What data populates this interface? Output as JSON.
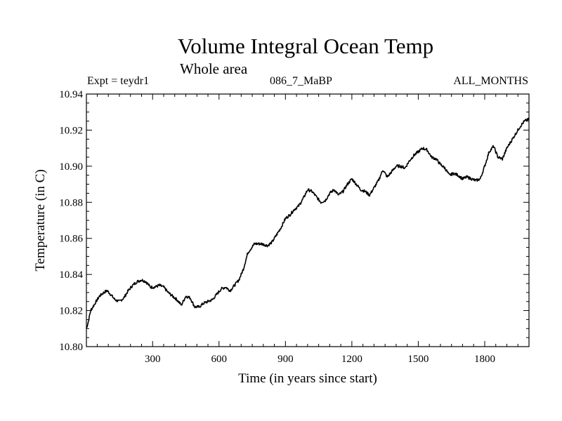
{
  "header": {
    "title": "Volume Integral Ocean Temp",
    "subtitle": "Whole area",
    "expt_label": "Expt = teydr1",
    "run_label": "086_7_MaBP",
    "months_label": "ALL_MONTHS"
  },
  "chart_data": {
    "type": "line",
    "title": "Volume Integral Ocean Temp",
    "subtitle": "Whole area",
    "xlabel": "Time (in years since start)",
    "ylabel": "Temperature (in C)",
    "xlim": [
      1,
      2000
    ],
    "ylim": [
      10.8,
      10.94
    ],
    "xticks": [
      300,
      600,
      900,
      1200,
      1500,
      1800
    ],
    "yticks": [
      "10.80",
      "10.82",
      "10.84",
      "10.86",
      "10.88",
      "10.90",
      "10.92",
      "10.94"
    ],
    "grid": false,
    "line_color": "#000000",
    "series": [
      {
        "x": [
          1,
          10,
          20,
          40,
          60,
          80,
          95,
          110,
          130,
          150,
          170,
          190,
          210,
          230,
          250,
          270,
          290,
          310,
          330,
          350,
          370,
          390,
          410,
          430,
          450,
          470,
          490,
          510,
          530,
          550,
          570,
          590,
          610,
          630,
          650,
          670,
          690,
          710,
          730,
          760,
          790,
          820,
          840,
          860,
          880,
          900,
          920,
          940,
          960,
          980,
          1000,
          1020,
          1040,
          1060,
          1080,
          1100,
          1120,
          1140,
          1160,
          1180,
          1200,
          1220,
          1240,
          1260,
          1280,
          1300,
          1320,
          1340,
          1360,
          1380,
          1400,
          1420,
          1440,
          1460,
          1480,
          1500,
          1520,
          1540,
          1560,
          1580,
          1600,
          1620,
          1640,
          1660,
          1680,
          1700,
          1720,
          1740,
          1760,
          1780,
          1800,
          1820,
          1840,
          1860,
          1880,
          1900,
          1920,
          1940,
          1960,
          1980,
          2000
        ],
        "values": [
          10.81,
          10.814,
          10.82,
          10.824,
          10.828,
          10.83,
          10.831,
          10.829,
          10.826,
          10.825,
          10.827,
          10.831,
          10.834,
          10.836,
          10.837,
          10.836,
          10.833,
          10.833,
          10.834,
          10.833,
          10.83,
          10.828,
          10.826,
          10.823,
          10.828,
          10.827,
          10.822,
          10.822,
          10.824,
          10.825,
          10.826,
          10.829,
          10.832,
          10.833,
          10.831,
          10.834,
          10.837,
          10.843,
          10.852,
          10.857,
          10.857,
          10.856,
          10.858,
          10.862,
          10.866,
          10.871,
          10.873,
          10.876,
          10.878,
          10.882,
          10.887,
          10.886,
          10.883,
          10.88,
          10.881,
          10.885,
          10.887,
          10.884,
          10.886,
          10.89,
          10.893,
          10.89,
          10.887,
          10.886,
          10.884,
          10.888,
          10.892,
          10.898,
          10.894,
          10.897,
          10.9,
          10.9,
          10.899,
          10.903,
          10.906,
          10.908,
          10.91,
          10.909,
          10.905,
          10.904,
          10.901,
          10.899,
          10.895,
          10.896,
          10.895,
          10.893,
          10.894,
          10.893,
          10.892,
          10.893,
          10.9,
          10.908,
          10.911,
          10.905,
          10.904,
          10.91,
          10.914,
          10.918,
          10.922,
          10.925,
          10.926
        ]
      }
    ]
  }
}
